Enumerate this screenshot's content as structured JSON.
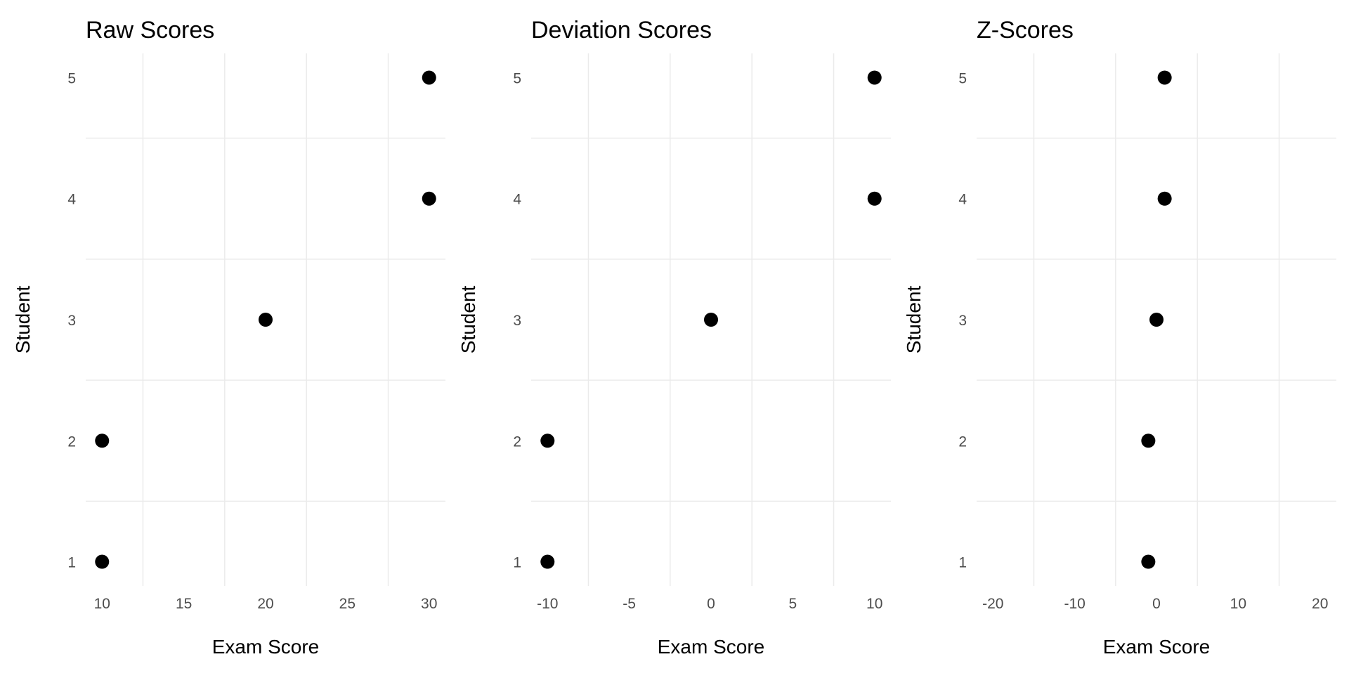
{
  "chart_data": [
    {
      "type": "scatter",
      "title": "Raw Scores",
      "xlabel": "Exam Score",
      "ylabel": "Student",
      "xlim": [
        9,
        31
      ],
      "x_ticks": [
        10,
        15,
        20,
        25,
        30
      ],
      "y_ticks": [
        1,
        2,
        3,
        4,
        5
      ],
      "grid": true,
      "points": [
        {
          "student": 1,
          "score": 10
        },
        {
          "student": 2,
          "score": 10
        },
        {
          "student": 3,
          "score": 20
        },
        {
          "student": 4,
          "score": 30
        },
        {
          "student": 5,
          "score": 30
        }
      ],
      "point_color": "#000000"
    },
    {
      "type": "scatter",
      "title": "Deviation Scores",
      "xlabel": "Exam Score",
      "ylabel": "Student",
      "xlim": [
        -11,
        11
      ],
      "x_ticks": [
        -10,
        -5,
        0,
        5,
        10
      ],
      "y_ticks": [
        1,
        2,
        3,
        4,
        5
      ],
      "grid": true,
      "points": [
        {
          "student": 1,
          "score": -10
        },
        {
          "student": 2,
          "score": -10
        },
        {
          "student": 3,
          "score": 0
        },
        {
          "student": 4,
          "score": 10
        },
        {
          "student": 5,
          "score": 10
        }
      ],
      "point_color": "#000000"
    },
    {
      "type": "scatter",
      "title": "Z-Scores",
      "xlabel": "Exam Score",
      "ylabel": "Student",
      "xlim": [
        -22,
        22
      ],
      "x_ticks": [
        -20,
        -10,
        0,
        10,
        20
      ],
      "y_ticks": [
        1,
        2,
        3,
        4,
        5
      ],
      "grid": true,
      "points": [
        {
          "student": 1,
          "score": -1.0
        },
        {
          "student": 2,
          "score": -1.0
        },
        {
          "student": 3,
          "score": 0.0
        },
        {
          "student": 4,
          "score": 1.0
        },
        {
          "student": 5,
          "score": 1.0
        }
      ],
      "point_color": "#000000"
    }
  ]
}
